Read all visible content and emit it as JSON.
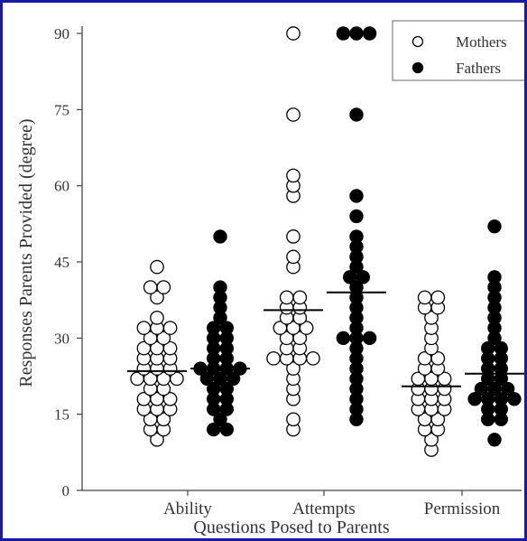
{
  "chart_data": {
    "type": "scatter",
    "xlabel": "Questions Posed to Parents",
    "ylabel": "Responses Parents Provided (degree)",
    "ylim": [
      0,
      90
    ],
    "yticks": [
      "0",
      "15",
      "30",
      "45",
      "60",
      "75",
      "90"
    ],
    "categories": [
      "Ability",
      "Attempts",
      "Permission"
    ],
    "legend_position": "top-right",
    "grid": false,
    "series": [
      {
        "name": "Mothers",
        "marker": "open-circle",
        "color": "#000000",
        "means": [
          23.5,
          35.5,
          20.5
        ],
        "points": [
          [
            10,
            12,
            12,
            14,
            14,
            16,
            16,
            16,
            18,
            18,
            18,
            20,
            20,
            22,
            22,
            22,
            22,
            24,
            24,
            24,
            26,
            26,
            26,
            28,
            28,
            28,
            30,
            30,
            32,
            32,
            32,
            34,
            38,
            40,
            40,
            44
          ],
          [
            12,
            14,
            18,
            20,
            22,
            24,
            26,
            26,
            26,
            26,
            28,
            28,
            30,
            30,
            32,
            32,
            32,
            34,
            34,
            36,
            36,
            38,
            38,
            44,
            46,
            50,
            58,
            60,
            62,
            74,
            90
          ],
          [
            8,
            10,
            12,
            12,
            14,
            14,
            16,
            16,
            16,
            18,
            18,
            18,
            20,
            20,
            20,
            22,
            22,
            22,
            24,
            24,
            26,
            26,
            28,
            30,
            32,
            34,
            36,
            36,
            38,
            38
          ]
        ]
      },
      {
        "name": "Fathers",
        "marker": "filled-circle",
        "color": "#000000",
        "means": [
          24,
          39,
          23
        ],
        "points": [
          [
            12,
            12,
            14,
            16,
            16,
            18,
            18,
            20,
            20,
            22,
            22,
            22,
            24,
            24,
            24,
            24,
            26,
            26,
            28,
            28,
            30,
            30,
            32,
            32,
            34,
            36,
            38,
            40,
            50
          ],
          [
            14,
            16,
            18,
            20,
            22,
            24,
            26,
            28,
            30,
            30,
            30,
            32,
            34,
            36,
            38,
            40,
            42,
            42,
            44,
            46,
            48,
            50,
            54,
            58,
            74,
            90,
            90,
            90
          ],
          [
            10,
            14,
            14,
            16,
            16,
            18,
            18,
            18,
            18,
            20,
            20,
            20,
            22,
            22,
            24,
            24,
            26,
            26,
            28,
            28,
            30,
            32,
            34,
            36,
            38,
            40,
            42,
            52
          ]
        ]
      }
    ]
  }
}
